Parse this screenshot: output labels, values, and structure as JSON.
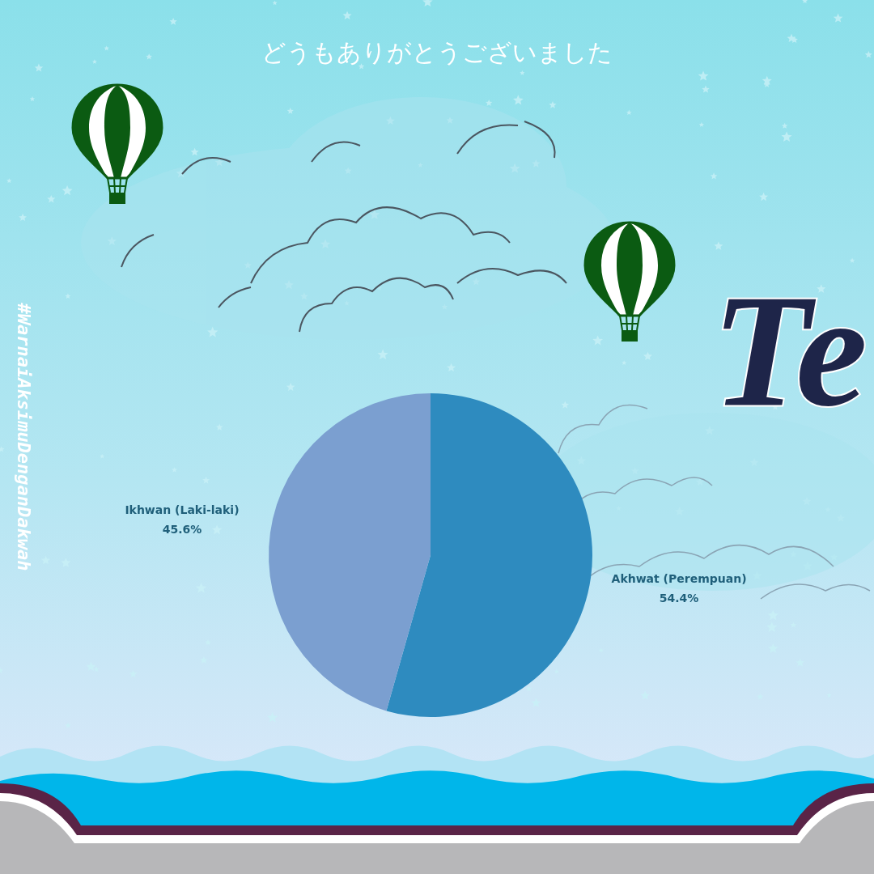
{
  "chart_data": {
    "type": "pie",
    "title": "どうもありがとうございました",
    "annotations": [
      "#WarnaiAksimuDenganDakwah",
      "Te"
    ],
    "categories": [
      "Akhwat (Perempuan)",
      "Ikhwan (Laki-laki)"
    ],
    "values": [
      54.4,
      45.6
    ],
    "value_labels": [
      "54.4%",
      "45.6%"
    ],
    "colors": [
      "#2e8bbf",
      "#7b9fd0"
    ],
    "data_labels": true
  }
}
